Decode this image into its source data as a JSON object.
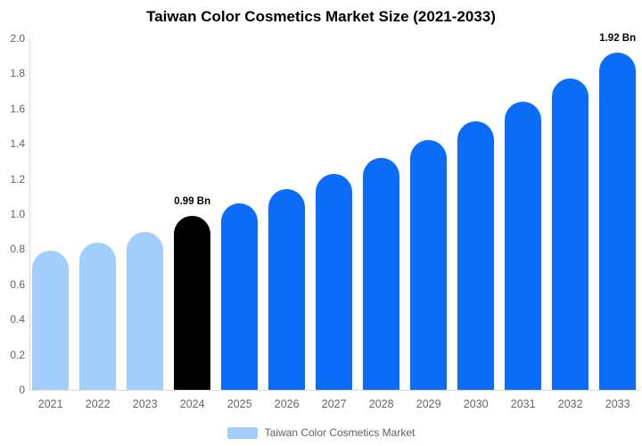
{
  "header": {
    "title": "Taiwan Color Cosmetics Market Size (2021-2033)"
  },
  "legend": {
    "label": "Taiwan Color Cosmetics Market",
    "swatch_color": "#a2cefc"
  },
  "chart_data": {
    "type": "bar",
    "title": "Taiwan Color Cosmetics Market Size (2021-2033)",
    "unit": "Bn",
    "categories": [
      "2021",
      "2022",
      "2023",
      "2024",
      "2025",
      "2026",
      "2027",
      "2028",
      "2029",
      "2030",
      "2031",
      "2032",
      "2033"
    ],
    "values": [
      0.79,
      0.84,
      0.9,
      0.99,
      1.06,
      1.14,
      1.23,
      1.32,
      1.42,
      1.53,
      1.64,
      1.77,
      1.92
    ],
    "bar_colors": [
      "#a2cefc",
      "#a2cefc",
      "#a2cefc",
      "#000000",
      "#0b6cfa",
      "#0b6cfa",
      "#0b6cfa",
      "#0b6cfa",
      "#0b6cfa",
      "#0b6cfa",
      "#0b6cfa",
      "#0b6cfa",
      "#0b6cfa"
    ],
    "color_legend": {
      "historical": "#a2cefc",
      "highlight": "#000000",
      "forecast": "#0b6cfa"
    },
    "annotations": [
      {
        "index": 3,
        "category": "2024",
        "text": "0.99 Bn"
      },
      {
        "index": 12,
        "category": "2033",
        "text": "1.92 Bn"
      }
    ],
    "ylim": [
      0,
      2.0
    ],
    "yticks": [
      "2.0",
      "1.8",
      "1.6",
      "1.4",
      "1.2",
      "1.0",
      "0.8",
      "0.6",
      "0.4",
      "0.2",
      "0"
    ],
    "xlabel": "",
    "ylabel": "",
    "grid": false,
    "legend_entries": [
      "Taiwan Color Cosmetics Market"
    ],
    "legend_position": "bottom"
  }
}
